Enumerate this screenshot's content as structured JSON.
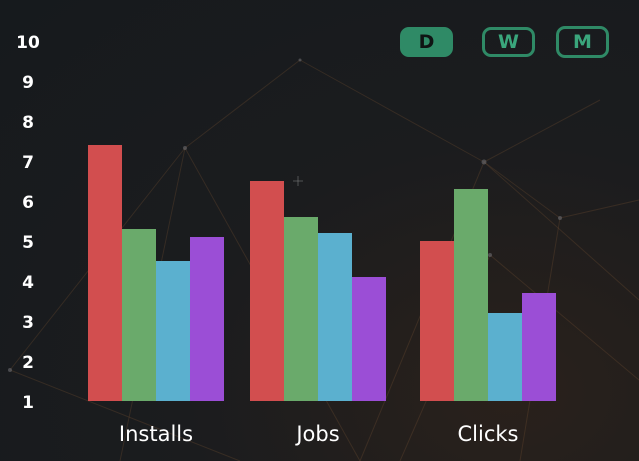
{
  "range_toggle": {
    "options": [
      {
        "label": "D",
        "active": true
      },
      {
        "label": "W",
        "active": false
      },
      {
        "label": "M",
        "active": false
      }
    ]
  },
  "colors": {
    "accent": "#2f8a66",
    "series": [
      "#d24e4f",
      "#6aaa6b",
      "#5bb0cf",
      "#9b4ed6"
    ]
  },
  "chart_data": {
    "type": "bar",
    "categories": [
      "Installs",
      "Jobs",
      "Clicks"
    ],
    "series": [
      {
        "values": [
          7.4,
          6.5,
          5.0
        ]
      },
      {
        "values": [
          5.3,
          5.6,
          6.3
        ]
      },
      {
        "values": [
          4.5,
          5.2,
          3.2
        ]
      },
      {
        "values": [
          5.1,
          4.1,
          3.7
        ]
      }
    ],
    "y_ticks": [
      "1",
      "2",
      "3",
      "4",
      "5",
      "6",
      "7",
      "8",
      "9",
      "10"
    ],
    "ylim": [
      1,
      10
    ],
    "grid": false,
    "legend": "none"
  }
}
